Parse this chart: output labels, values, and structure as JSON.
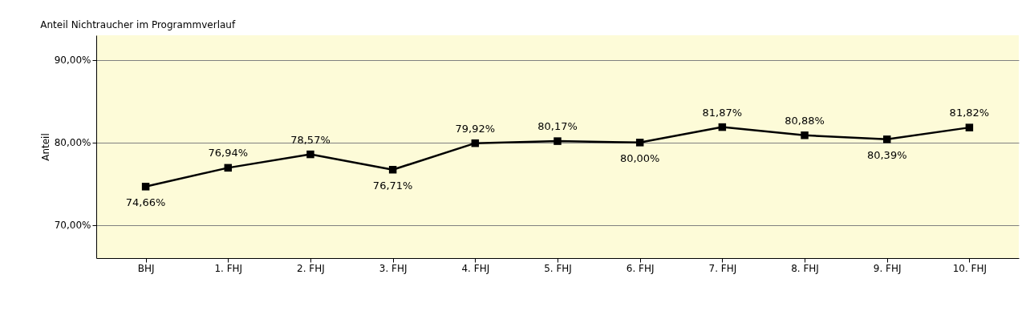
{
  "chart_data": {
    "type": "line",
    "title": "Anteil Nichtraucher im Programmverlauf",
    "ylabel": "Anteil",
    "categories": [
      "BHJ",
      "1. FHJ",
      "2. FHJ",
      "3. FHJ",
      "4. FHJ",
      "5. FHJ",
      "6. FHJ",
      "7. FHJ",
      "8. FHJ",
      "9. FHJ",
      "10. FHJ"
    ],
    "series": [
      {
        "color": "#000000",
        "values": [
          74.66,
          76.94,
          78.57,
          76.71,
          79.92,
          80.17,
          80.0,
          81.87,
          80.88,
          80.39,
          81.82
        ],
        "value_labels": [
          "74,66%",
          "76,94%",
          "78,57%",
          "76,71%",
          "79,92%",
          "80,17%",
          "80,00%",
          "81,87%",
          "80,88%",
          "80,39%",
          "81,82%"
        ]
      }
    ],
    "ylim": [
      66,
      93
    ],
    "yticks": [
      {
        "value": 70,
        "label": "70,00%"
      },
      {
        "value": 80,
        "label": "80,00%"
      },
      {
        "value": 90,
        "label": "90,00%"
      }
    ],
    "grid": "y",
    "marker": "square",
    "line_style": "solid"
  }
}
